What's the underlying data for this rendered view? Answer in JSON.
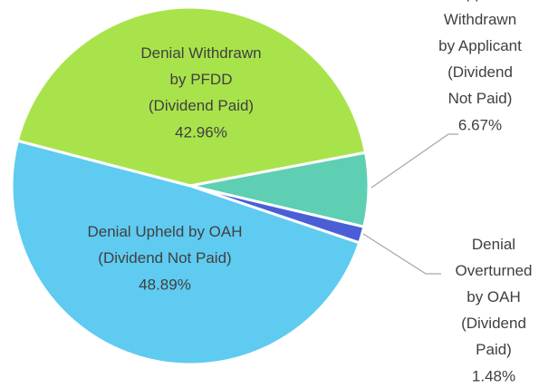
{
  "chart_data": {
    "type": "pie",
    "categories": [
      "Denial Withdrawn by PFDD (Dividend Paid)",
      "Appeal Withdrawn by Applicant (Dividend Not Paid)",
      "Denial Overturned by OAH (Dividend Paid)",
      "Denial Upheld by OAH (Dividend Not Paid)"
    ],
    "values": [
      42.96,
      6.67,
      1.48,
      48.89
    ],
    "value_labels": [
      "42.96%",
      "6.67%",
      "1.48%",
      "48.89%"
    ],
    "colors": [
      "#a9e34b",
      "#5ecfb3",
      "#4a5fd6",
      "#5fcbf1"
    ]
  }
}
